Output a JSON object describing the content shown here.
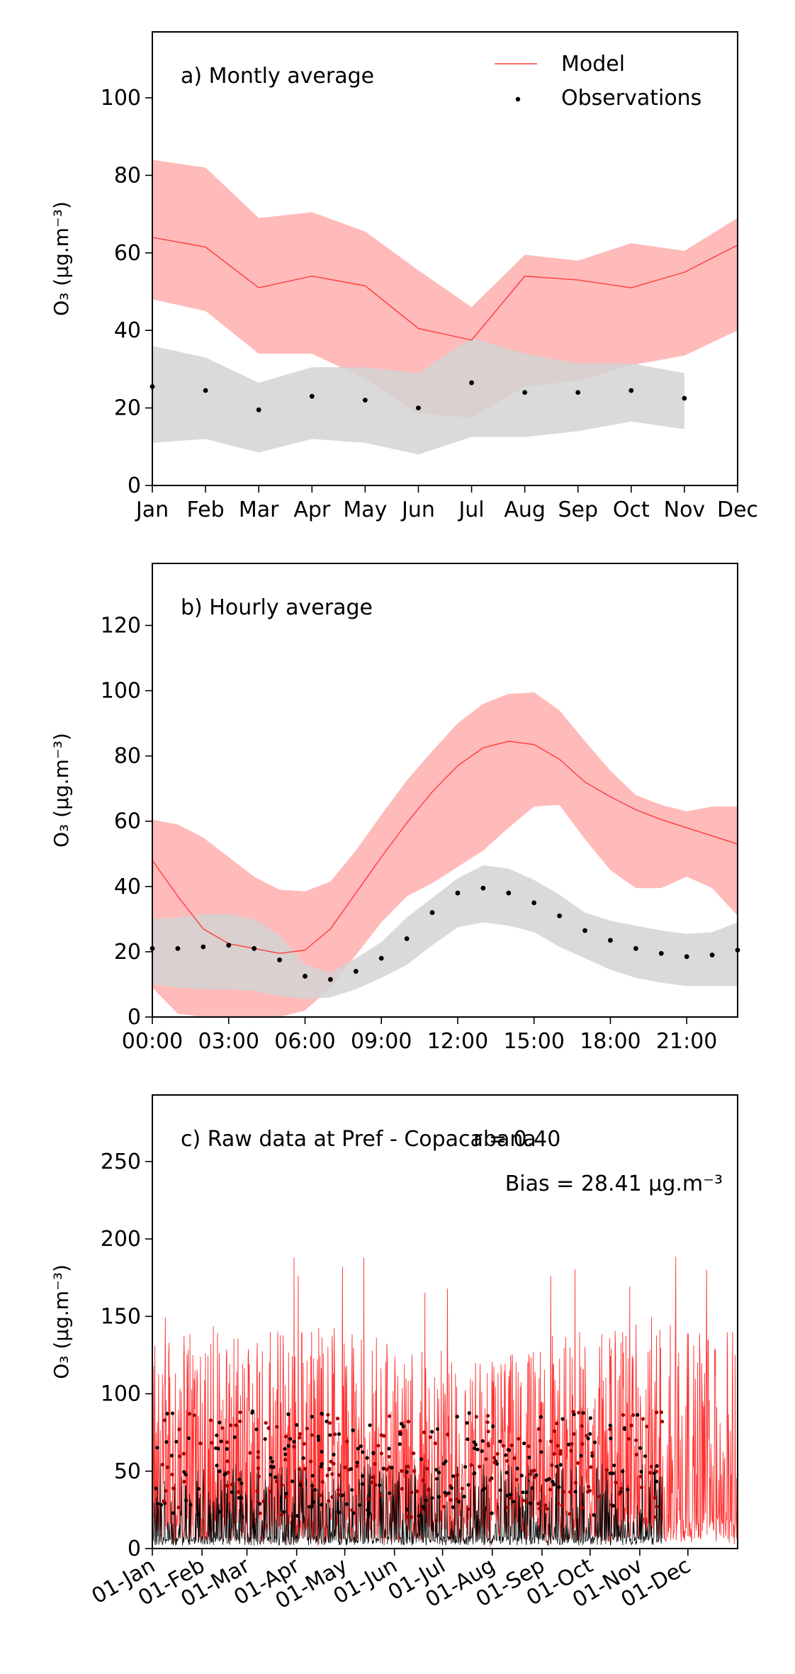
{
  "chart_data": [
    {
      "id": "monthly",
      "type": "line",
      "panel_label": "a) Montly average",
      "ylabel": "O₃ (µg.m⁻³)",
      "ylim": [
        0,
        117
      ],
      "yticks": [
        0,
        20,
        40,
        60,
        80,
        100
      ],
      "x": [
        0,
        1,
        2,
        3,
        4,
        5,
        6,
        7,
        8,
        9,
        10,
        11
      ],
      "xticklabels": [
        "Jan",
        "Feb",
        "Mar",
        "Apr",
        "May",
        "Jun",
        "Jul",
        "Aug",
        "Sep",
        "Oct",
        "Nov",
        "Dec"
      ],
      "legend": {
        "placement": "top-right",
        "entries": [
          {
            "label": "Model",
            "color": "#ff3b3b"
          },
          {
            "label": "Observations",
            "color": "#000000"
          }
        ]
      },
      "series": [
        {
          "name": "Model",
          "kind": "line",
          "color": "#ff3b3b",
          "values": [
            64,
            61.5,
            51,
            54,
            51.5,
            40.5,
            37.5,
            54,
            53,
            51,
            55,
            62
          ]
        },
        {
          "name": "Model",
          "kind": "band",
          "color": "#ffb3b3",
          "upper": [
            84,
            82,
            69,
            70.5,
            65.5,
            55.5,
            46,
            59.5,
            58,
            62.5,
            60.5,
            69
          ],
          "lower": [
            48,
            45,
            34,
            34,
            27.5,
            18.5,
            17.5,
            25.5,
            27,
            31,
            33.5,
            40
          ]
        },
        {
          "name": "Observations",
          "kind": "points",
          "color": "#000000",
          "values": [
            25.5,
            24.5,
            19.5,
            23,
            22,
            20,
            26.5,
            24,
            24,
            24.5,
            22.5,
            null
          ]
        },
        {
          "name": "Observations",
          "kind": "band",
          "color": "#d3d3d3",
          "upper": [
            36,
            33,
            26.5,
            30.5,
            30.5,
            29,
            38,
            34,
            31.5,
            31.5,
            29,
            null
          ],
          "lower": [
            11,
            12,
            8.5,
            12,
            11,
            8,
            12.5,
            12.5,
            14,
            16.5,
            14.5,
            null
          ]
        }
      ]
    },
    {
      "id": "hourly",
      "type": "line",
      "panel_label": "b) Hourly average",
      "ylabel": "O₃ (µg.m⁻³)",
      "ylim": [
        0,
        139
      ],
      "yticks": [
        0,
        20,
        40,
        60,
        80,
        100,
        120
      ],
      "x": [
        0,
        1,
        2,
        3,
        4,
        5,
        6,
        7,
        8,
        9,
        10,
        11,
        12,
        13,
        14,
        15,
        16,
        17,
        18,
        19,
        20,
        21,
        22,
        23
      ],
      "xticks": [
        0,
        3,
        6,
        9,
        12,
        15,
        18,
        21
      ],
      "xticklabels": [
        "00:00",
        "03:00",
        "06:00",
        "09:00",
        "12:00",
        "15:00",
        "18:00",
        "21:00"
      ],
      "series": [
        {
          "name": "Model",
          "kind": "line",
          "color": "#ff3b3b",
          "values": [
            48,
            37,
            27,
            22.5,
            21,
            19.5,
            20.5,
            27,
            38,
            49,
            59.5,
            69,
            77,
            82.5,
            84.5,
            83.5,
            79,
            72,
            67.5,
            63.5,
            60.5,
            58,
            55.5,
            53
          ]
        },
        {
          "name": "Model",
          "kind": "band",
          "color": "#ffb3b3",
          "upper": [
            60.5,
            59,
            55,
            49,
            43,
            39,
            38.5,
            41.5,
            51,
            62,
            72.5,
            81.5,
            90,
            96,
            99,
            99.5,
            94,
            84.5,
            75.5,
            68,
            65,
            63,
            64.5,
            64.5
          ],
          "lower": [
            9,
            1,
            0,
            0,
            0,
            0,
            2,
            9,
            19,
            29,
            37,
            41,
            46,
            51,
            58,
            64.5,
            65,
            54.5,
            45,
            39.5,
            39.5,
            43,
            39.5,
            31
          ]
        },
        {
          "name": "Observations",
          "kind": "points",
          "color": "#000000",
          "values": [
            21,
            21,
            21.5,
            22,
            21,
            17.5,
            12.5,
            11.5,
            14,
            18,
            24,
            32,
            38,
            39.5,
            38,
            35,
            31,
            26.5,
            23.5,
            21,
            19.5,
            18.5,
            19,
            20.5
          ]
        },
        {
          "name": "Observations",
          "kind": "band",
          "color": "#d3d3d3",
          "upper": [
            30,
            30.5,
            31.5,
            31.5,
            30,
            25,
            16,
            13.5,
            18,
            23,
            30.5,
            36.5,
            42.5,
            46.5,
            45.5,
            42,
            37.5,
            32,
            29.5,
            28,
            26.5,
            25.5,
            26,
            29
          ],
          "lower": [
            10,
            9,
            8.5,
            8.5,
            8,
            6.5,
            5.5,
            6,
            8.5,
            12,
            16,
            22,
            27.5,
            29,
            28,
            26,
            21.5,
            18,
            14.5,
            12,
            10.5,
            9.5,
            9.5,
            9.5
          ]
        }
      ]
    },
    {
      "id": "raw",
      "type": "line",
      "panel_label": "c) Raw data at Pref - Copacabana",
      "annotation_r": "r = 0.40",
      "annotation_bias": "Bias = 28.41 µg.m⁻³",
      "ylabel": "O₃ (µg.m⁻³)",
      "ylim": [
        0,
        293
      ],
      "yticks": [
        0,
        50,
        100,
        150,
        200,
        250
      ],
      "xlim": [
        0,
        365
      ],
      "xticks": [
        0,
        31,
        59,
        90,
        120,
        151,
        181,
        212,
        243,
        273,
        304,
        334
      ],
      "xticklabels": [
        "01-Jan",
        "01-Feb",
        "01-Mar",
        "01-Apr",
        "01-May",
        "01-Jun",
        "01-Jul",
        "01-Aug",
        "01-Sep",
        "01-Oct",
        "01-Nov",
        "01-Dec"
      ],
      "series": [
        {
          "name": "Model",
          "kind": "hourly-line",
          "color": "#ff1a1a",
          "seasonal_peak": [
            150,
            148,
            145,
            146,
            140,
            128,
            122,
            130,
            140,
            145,
            150,
            140
          ],
          "max_value": 190,
          "mean_value": 55
        },
        {
          "name": "Observations",
          "kind": "hourly-points",
          "color": "#000000",
          "x_range": [
            0,
            318
          ],
          "max_value": 89,
          "mean_value": 22
        }
      ]
    }
  ]
}
